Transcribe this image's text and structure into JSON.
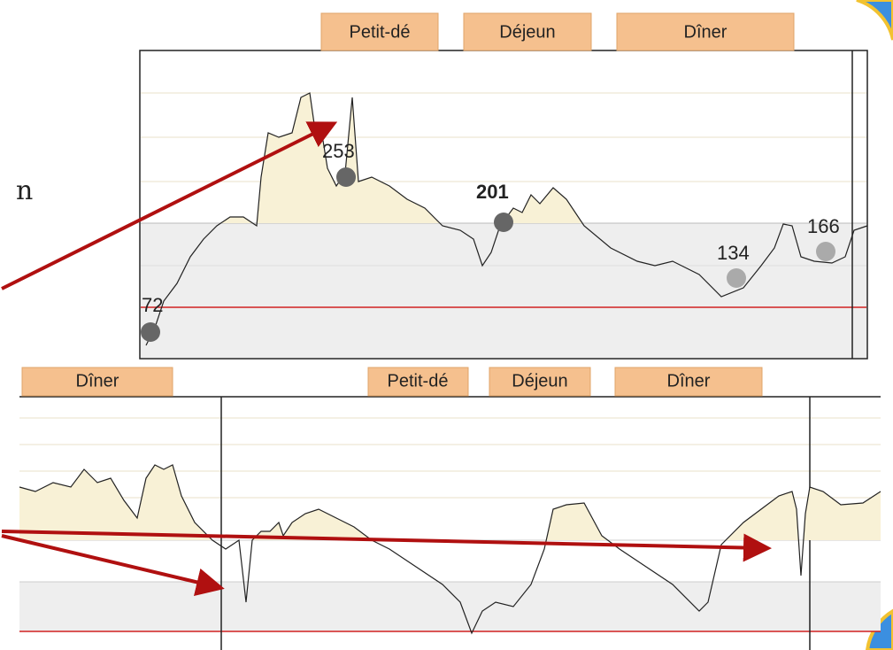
{
  "side_text": "n",
  "top_chart": {
    "meals": [
      "Petit-dé",
      "Déjeun",
      "Dîner"
    ],
    "points": [
      "72",
      "253",
      "201",
      "134",
      "166"
    ]
  },
  "bottom_chart": {
    "meals": [
      "Dîner",
      "Petit-dé",
      "Déjeun",
      "Dîner"
    ]
  }
}
